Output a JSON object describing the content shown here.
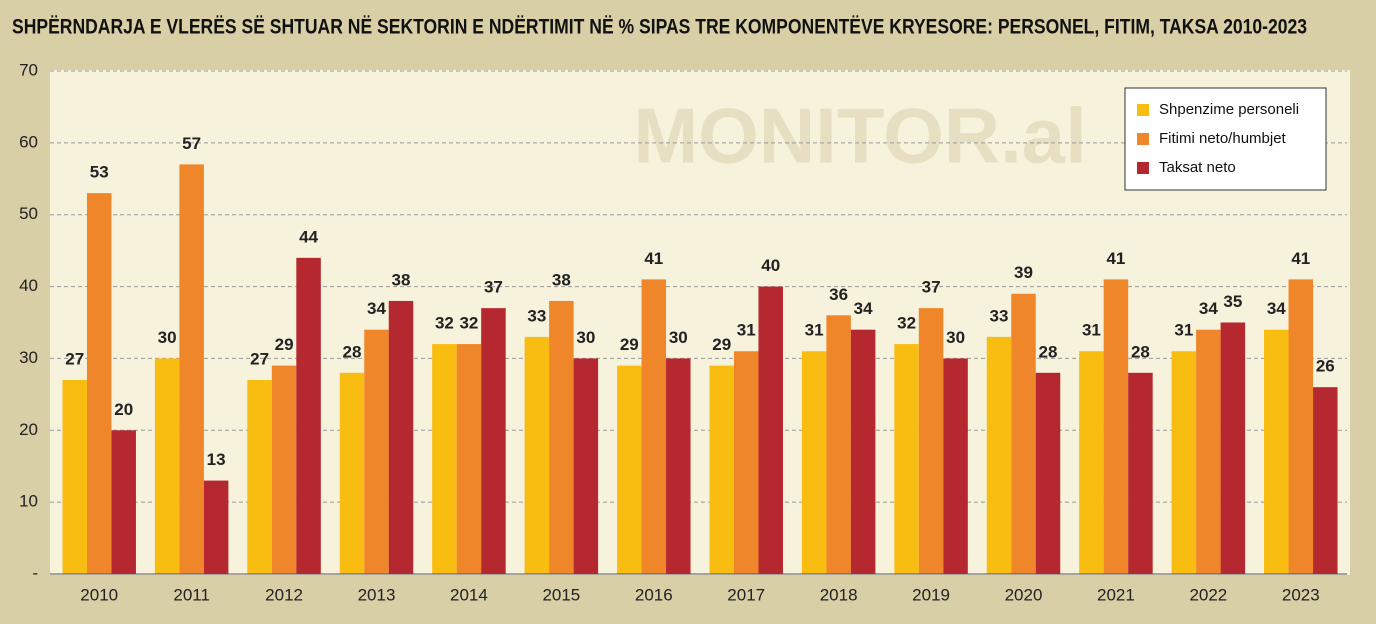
{
  "chart_data": {
    "type": "bar",
    "title": "SHPËRNDARJA E VLERËS SË SHTUAR NË SEKTORIN E NDËRTIMIT NË % SIPAS TRE KOMPONENTËVE KRYESORE: PERSONEL, FITIM, TAKSA 2010-2023",
    "watermark": "MONITOR.al",
    "categories": [
      "2010",
      "2011",
      "2012",
      "2013",
      "2014",
      "2015",
      "2016",
      "2017",
      "2018",
      "2019",
      "2020",
      "2021",
      "2022",
      "2023"
    ],
    "series": [
      {
        "name": "Shpenzime personeli",
        "color": "#f9bd12",
        "values": [
          27,
          30,
          27,
          28,
          32,
          33,
          29,
          29,
          31,
          32,
          33,
          31,
          31,
          34
        ]
      },
      {
        "name": "Fitimi neto/humbjet",
        "color": "#f0862a",
        "values": [
          53,
          57,
          29,
          34,
          32,
          38,
          41,
          31,
          36,
          37,
          39,
          41,
          34,
          41
        ]
      },
      {
        "name": "Taksat neto",
        "color": "#b6282f",
        "values": [
          20,
          13,
          44,
          38,
          37,
          30,
          30,
          40,
          34,
          30,
          28,
          28,
          35,
          26
        ]
      }
    ],
    "ylim": [
      0,
      70
    ],
    "yticks": [
      {
        "value": 0,
        "label": "-"
      },
      10,
      20,
      30,
      40,
      50,
      60,
      70
    ],
    "grid": true,
    "legend": "top-right"
  }
}
